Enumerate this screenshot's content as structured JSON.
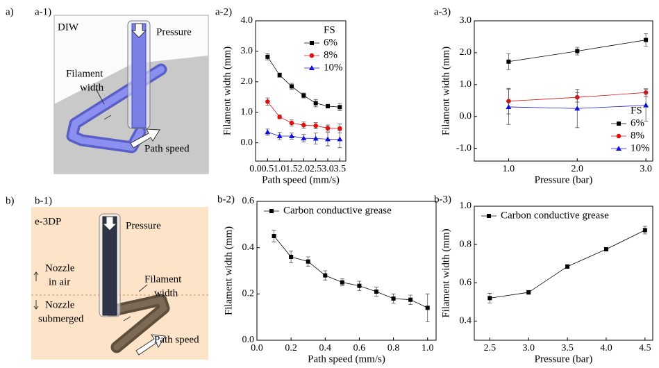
{
  "figure": {
    "row_labels": [
      "a)",
      "b)"
    ],
    "illustrations": [
      {
        "label": "a-1)",
        "texts": [
          "DIW",
          "Pressure",
          "Filament",
          "width",
          "Path speed"
        ]
      },
      {
        "label": "b-1)",
        "texts": [
          "e-3DP",
          "Pressure",
          "Nozzle",
          "in air",
          "Nozzle",
          "submerged",
          "Filament",
          "width",
          "Path speed"
        ]
      }
    ]
  },
  "chart_data": [
    {
      "type": "line",
      "panel_label": "a-2)",
      "xlabel": "Path speed (mm/s)",
      "ylabel": "Filament width (mm)",
      "x": [
        0.5,
        1.0,
        1.5,
        2.0,
        2.5,
        3.0,
        3.5
      ],
      "xlim": [
        0,
        3.75
      ],
      "ylim": [
        -0.6,
        4.0
      ],
      "xticks": [
        {
          "value": 0,
          "label": "0.0"
        },
        0.5,
        {
          "value": 1,
          "label": "1.0"
        },
        1.5,
        {
          "value": 2,
          "label": "2.0"
        },
        2.5,
        {
          "value": 3,
          "label": "3.0"
        },
        3.5
      ],
      "yticks": [
        {
          "value": 0,
          "label": "0.0"
        },
        {
          "value": 1,
          "label": "1.0"
        },
        {
          "value": 2,
          "label": "2.0"
        },
        {
          "value": 3,
          "label": "3.0"
        },
        {
          "value": 4,
          "label": "4.0"
        }
      ],
      "legend_title": "FS",
      "legend": "upper right",
      "series": [
        {
          "name": "6%",
          "color": "#000000",
          "marker": "square",
          "values": [
            2.82,
            2.22,
            1.85,
            1.55,
            1.3,
            1.2,
            1.17
          ],
          "errors": [
            0.1,
            0.07,
            0.1,
            0.08,
            0.12,
            0.06,
            0.12
          ]
        },
        {
          "name": "8%",
          "color": "#e01010",
          "marker": "circle",
          "values": [
            1.35,
            0.85,
            0.65,
            0.58,
            0.56,
            0.48,
            0.47
          ],
          "errors": [
            0.12,
            0.06,
            0.1,
            0.1,
            0.1,
            0.1,
            0.15
          ]
        },
        {
          "name": "10%",
          "color": "#1010e0",
          "marker": "triangle",
          "values": [
            0.35,
            0.22,
            0.22,
            0.15,
            0.14,
            0.12,
            0.12
          ],
          "errors": [
            0.1,
            0.12,
            0.1,
            0.12,
            0.18,
            0.22,
            0.28
          ]
        }
      ]
    },
    {
      "type": "line",
      "panel_label": "a-3)",
      "xlabel": "Pressure (bar)",
      "ylabel": "Filament width (mm)",
      "x": [
        1,
        2,
        3
      ],
      "xlim": [
        0.5,
        3.1
      ],
      "ylim": [
        -1.4,
        3.0
      ],
      "xticks": [
        {
          "value": 1,
          "label": "1.0"
        },
        {
          "value": 2,
          "label": "2.0"
        },
        {
          "value": 3,
          "label": "3.0"
        }
      ],
      "yticks": [
        {
          "value": -1,
          "label": "-1.0"
        },
        {
          "value": 0,
          "label": "0.0"
        },
        {
          "value": 1,
          "label": "1.0"
        },
        {
          "value": 2,
          "label": "2.0"
        },
        {
          "value": 3,
          "label": "3.0"
        }
      ],
      "legend_title": "FS",
      "legend": "lower right",
      "series": [
        {
          "name": "6%",
          "color": "#000000",
          "marker": "square",
          "values": [
            1.72,
            2.05,
            2.4
          ],
          "errors": [
            0.25,
            0.12,
            0.2
          ]
        },
        {
          "name": "8%",
          "color": "#e01010",
          "marker": "circle",
          "values": [
            0.48,
            0.6,
            0.75
          ],
          "errors": [
            0.4,
            0.15,
            0.12
          ]
        },
        {
          "name": "10%",
          "color": "#1010e0",
          "marker": "triangle",
          "values": [
            0.3,
            0.25,
            0.35
          ],
          "errors": [
            0.55,
            0.6,
            0.5
          ]
        }
      ]
    },
    {
      "type": "line",
      "panel_label": "b-2)",
      "xlabel": "Path speed (mm/s)",
      "ylabel": "Filament width (mm)",
      "x": [
        0.1,
        0.2,
        0.3,
        0.4,
        0.5,
        0.6,
        0.7,
        0.8,
        0.9,
        1.0
      ],
      "xlim": [
        0,
        1.05
      ],
      "ylim": [
        0,
        0.6
      ],
      "xticks": [
        {
          "value": 0,
          "label": "0.0"
        },
        0.2,
        0.4,
        0.6,
        0.8,
        {
          "value": 1,
          "label": "1.0"
        }
      ],
      "yticks": [
        {
          "value": 0,
          "label": "0.0"
        },
        0.2,
        0.4,
        0.6
      ],
      "legend": "upper left",
      "series": [
        {
          "name": "Carbon conductive grease",
          "color": "#000000",
          "marker": "square",
          "values": [
            0.45,
            0.36,
            0.34,
            0.28,
            0.25,
            0.235,
            0.21,
            0.18,
            0.175,
            0.14
          ],
          "errors": [
            0.025,
            0.025,
            0.02,
            0.02,
            0.015,
            0.02,
            0.02,
            0.02,
            0.02,
            0.06
          ]
        }
      ]
    },
    {
      "type": "line",
      "panel_label": "b-3)",
      "xlabel": "Pressure (bar)",
      "ylabel": "Filament width (mm)",
      "x": [
        2.5,
        3.0,
        3.5,
        4.0,
        4.5
      ],
      "xlim": [
        2.3,
        4.6
      ],
      "ylim": [
        0.3,
        1.0
      ],
      "xticks": [
        2.5,
        {
          "value": 3,
          "label": "3.0"
        },
        3.5,
        {
          "value": 4,
          "label": "4.0"
        },
        4.5
      ],
      "yticks": [
        0.4,
        0.6,
        0.8,
        {
          "value": 1,
          "label": "1.0"
        }
      ],
      "legend": "upper left",
      "series": [
        {
          "name": "Carbon conductive grease",
          "color": "#000000",
          "marker": "square",
          "values": [
            0.52,
            0.55,
            0.685,
            0.775,
            0.875
          ],
          "errors": [
            0.025,
            0.01,
            0.01,
            0.005,
            0.02
          ]
        }
      ]
    }
  ]
}
